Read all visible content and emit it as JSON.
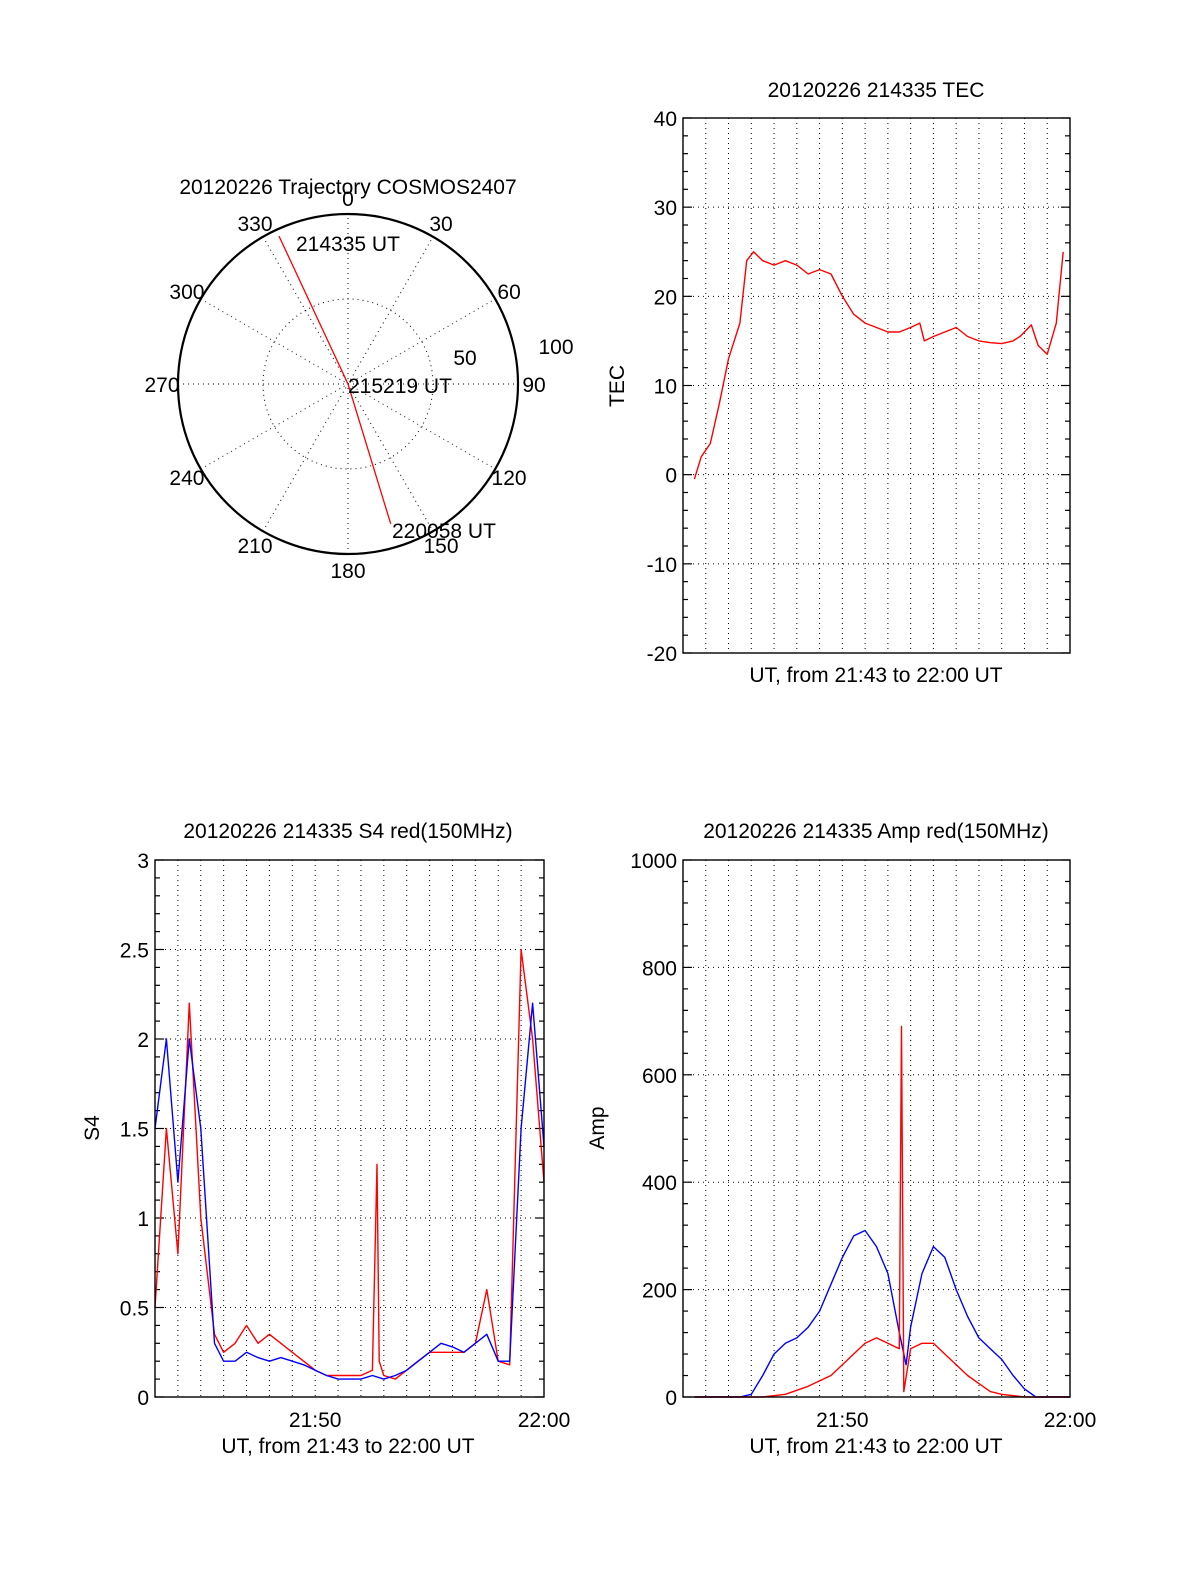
{
  "colors": {
    "red_series": "#ff0000",
    "blue_series": "#0000ff",
    "axes": "#000000",
    "background": "#ffffff"
  },
  "chart_data": [
    {
      "type": "polar",
      "title": "20120226 Trajectory COSMOS2407",
      "azimuth_labels": [
        "0",
        "30",
        "60",
        "90",
        "120",
        "150",
        "180",
        "210",
        "240",
        "270",
        "300",
        "330"
      ],
      "radius_labels": [
        "50",
        "100"
      ],
      "radius_range": [
        0,
        100
      ],
      "grid": true,
      "series": [
        {
          "color": "#ff0000",
          "points": [
            {
              "az": 335,
              "r": 96
            },
            {
              "az": 0,
              "r": 0
            },
            {
              "az": 163,
              "r": 86
            }
          ]
        }
      ],
      "annotations": [
        "214335 UT",
        "215219 UT",
        "220058 UT"
      ]
    },
    {
      "type": "line",
      "title": "20120226 214335 TEC",
      "xlabel": "UT, from 21:43 to 22:00 UT",
      "ylabel": "TEC",
      "xlim": [
        "21:43",
        "22:00"
      ],
      "ylim": [
        -20,
        40
      ],
      "yticks": [
        "-20",
        "-10",
        "0",
        "10",
        "20",
        "30",
        "40"
      ],
      "xticks": [],
      "grid": true,
      "series": [
        {
          "color": "#ff0000",
          "x_minutes": [
            0.5,
            0.8,
            1.2,
            1.6,
            2.0,
            2.5,
            2.8,
            3.1,
            3.5,
            4.0,
            4.5,
            5.0,
            5.5,
            6.0,
            6.5,
            7.0,
            7.5,
            8.0,
            8.5,
            9.0,
            9.5,
            10.0,
            10.4,
            10.6,
            11.0,
            11.5,
            12.0,
            12.5,
            13.0,
            13.5,
            14.0,
            14.5,
            14.8,
            15.0,
            15.3,
            15.6,
            16.0,
            16.4,
            16.7
          ],
          "values": [
            -0.5,
            2.0,
            3.5,
            8.0,
            13.0,
            17.0,
            24.0,
            25.0,
            24.0,
            23.5,
            24.0,
            23.5,
            22.5,
            23.0,
            22.5,
            20.0,
            18.0,
            17.0,
            16.5,
            16.0,
            16.0,
            16.5,
            17.0,
            15.0,
            15.5,
            16.0,
            16.5,
            15.5,
            15.0,
            14.8,
            14.7,
            15.0,
            15.5,
            16.0,
            16.8,
            14.5,
            13.5,
            17.0,
            25.0
          ]
        }
      ]
    },
    {
      "type": "line",
      "title": "20120226 214335 S4 red(150MHz)",
      "xlabel": "UT, from 21:43 to 22:00 UT",
      "ylabel": "S4",
      "xlim": [
        "21:43",
        "22:00"
      ],
      "ylim": [
        0,
        3
      ],
      "yticks": [
        "0",
        "0.5",
        "1",
        "1.5",
        "2",
        "2.5",
        "3"
      ],
      "xticks": [
        "21:50",
        "22:00"
      ],
      "grid": true,
      "series": [
        {
          "color": "#ff0000",
          "x_minutes": [
            0.0,
            0.5,
            1.0,
            1.5,
            2.0,
            2.6,
            3.0,
            3.5,
            4.0,
            4.5,
            5.0,
            5.5,
            6.0,
            6.5,
            7.0,
            7.5,
            8.0,
            8.5,
            9.0,
            9.5,
            9.7,
            9.8,
            10.0,
            10.5,
            11.0,
            11.5,
            12.0,
            12.5,
            13.0,
            13.5,
            14.0,
            14.5,
            15.0,
            15.5,
            16.0,
            16.5,
            17.0
          ],
          "values": [
            0.5,
            1.5,
            0.8,
            2.2,
            1.0,
            0.35,
            0.25,
            0.3,
            0.4,
            0.3,
            0.35,
            0.3,
            0.25,
            0.2,
            0.15,
            0.12,
            0.12,
            0.12,
            0.12,
            0.15,
            1.3,
            0.2,
            0.12,
            0.1,
            0.15,
            0.2,
            0.25,
            0.25,
            0.25,
            0.25,
            0.3,
            0.6,
            0.2,
            0.18,
            2.5,
            2.0,
            1.2
          ]
        },
        {
          "color": "#0000ff",
          "x_minutes": [
            0.0,
            0.5,
            1.0,
            1.5,
            2.0,
            2.6,
            3.0,
            3.5,
            4.0,
            4.5,
            5.0,
            5.5,
            6.0,
            6.5,
            7.0,
            7.5,
            8.0,
            8.5,
            9.0,
            9.5,
            10.0,
            10.5,
            11.0,
            11.5,
            12.0,
            12.5,
            13.0,
            13.5,
            14.0,
            14.5,
            15.0,
            15.5,
            16.0,
            16.5,
            17.0
          ],
          "values": [
            1.5,
            2.0,
            1.2,
            2.0,
            1.5,
            0.3,
            0.2,
            0.2,
            0.25,
            0.22,
            0.2,
            0.22,
            0.2,
            0.18,
            0.15,
            0.12,
            0.1,
            0.1,
            0.1,
            0.12,
            0.1,
            0.12,
            0.15,
            0.2,
            0.25,
            0.3,
            0.28,
            0.25,
            0.3,
            0.35,
            0.2,
            0.2,
            1.5,
            2.2,
            1.4
          ]
        }
      ]
    },
    {
      "type": "line",
      "title": "20120226 214335 Amp red(150MHz)",
      "xlabel": "UT, from 21:43 to 22:00 UT",
      "ylabel": "Amp",
      "xlim": [
        "21:43",
        "22:00"
      ],
      "ylim": [
        0,
        1000
      ],
      "yticks": [
        "0",
        "200",
        "400",
        "600",
        "800",
        "1000"
      ],
      "xticks": [
        "21:50",
        "22:00"
      ],
      "grid": true,
      "series": [
        {
          "color": "#0000ff",
          "x_minutes": [
            0.5,
            1.5,
            2.5,
            3.0,
            3.5,
            4.0,
            4.5,
            5.0,
            5.5,
            6.0,
            6.5,
            7.0,
            7.5,
            8.0,
            8.5,
            9.0,
            9.5,
            9.8,
            10.0,
            10.5,
            11.0,
            11.5,
            12.0,
            12.5,
            13.0,
            13.5,
            14.0,
            14.5,
            15.0,
            15.5,
            16.0,
            17.0
          ],
          "values": [
            0,
            0,
            0,
            5,
            40,
            80,
            100,
            110,
            130,
            160,
            210,
            260,
            300,
            310,
            280,
            230,
            120,
            60,
            130,
            230,
            280,
            260,
            200,
            150,
            110,
            90,
            70,
            40,
            15,
            0,
            0,
            0
          ]
        },
        {
          "color": "#ff0000",
          "x_minutes": [
            0.5,
            2.5,
            3.5,
            4.5,
            5.5,
            6.0,
            6.5,
            7.0,
            7.5,
            8.0,
            8.5,
            9.0,
            9.5,
            9.6,
            9.7,
            10.0,
            10.5,
            11.0,
            11.5,
            12.0,
            12.5,
            13.0,
            13.5,
            14.0,
            15.0,
            17.0
          ],
          "values": [
            0,
            0,
            0,
            5,
            20,
            30,
            40,
            60,
            80,
            100,
            110,
            100,
            90,
            690,
            10,
            90,
            100,
            100,
            80,
            60,
            40,
            25,
            10,
            5,
            0,
            0
          ]
        }
      ]
    }
  ]
}
